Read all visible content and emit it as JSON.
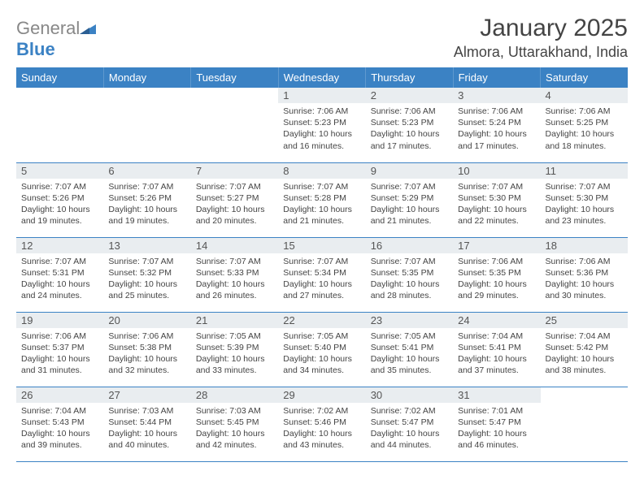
{
  "brand": {
    "part1": "General",
    "part2": "Blue"
  },
  "title": "January 2025",
  "location": "Almora, Uttarakhand, India",
  "colors": {
    "accent": "#3b82c4",
    "header_row": "#e9edf0",
    "text": "#444444"
  },
  "weekdays": [
    "Sunday",
    "Monday",
    "Tuesday",
    "Wednesday",
    "Thursday",
    "Friday",
    "Saturday"
  ],
  "weeks": [
    [
      {
        "empty": true
      },
      {
        "empty": true
      },
      {
        "empty": true
      },
      {
        "day": "1",
        "sunrise": "Sunrise: 7:06 AM",
        "sunset": "Sunset: 5:23 PM",
        "daylight1": "Daylight: 10 hours",
        "daylight2": "and 16 minutes."
      },
      {
        "day": "2",
        "sunrise": "Sunrise: 7:06 AM",
        "sunset": "Sunset: 5:23 PM",
        "daylight1": "Daylight: 10 hours",
        "daylight2": "and 17 minutes."
      },
      {
        "day": "3",
        "sunrise": "Sunrise: 7:06 AM",
        "sunset": "Sunset: 5:24 PM",
        "daylight1": "Daylight: 10 hours",
        "daylight2": "and 17 minutes."
      },
      {
        "day": "4",
        "sunrise": "Sunrise: 7:06 AM",
        "sunset": "Sunset: 5:25 PM",
        "daylight1": "Daylight: 10 hours",
        "daylight2": "and 18 minutes."
      }
    ],
    [
      {
        "day": "5",
        "sunrise": "Sunrise: 7:07 AM",
        "sunset": "Sunset: 5:26 PM",
        "daylight1": "Daylight: 10 hours",
        "daylight2": "and 19 minutes."
      },
      {
        "day": "6",
        "sunrise": "Sunrise: 7:07 AM",
        "sunset": "Sunset: 5:26 PM",
        "daylight1": "Daylight: 10 hours",
        "daylight2": "and 19 minutes."
      },
      {
        "day": "7",
        "sunrise": "Sunrise: 7:07 AM",
        "sunset": "Sunset: 5:27 PM",
        "daylight1": "Daylight: 10 hours",
        "daylight2": "and 20 minutes."
      },
      {
        "day": "8",
        "sunrise": "Sunrise: 7:07 AM",
        "sunset": "Sunset: 5:28 PM",
        "daylight1": "Daylight: 10 hours",
        "daylight2": "and 21 minutes."
      },
      {
        "day": "9",
        "sunrise": "Sunrise: 7:07 AM",
        "sunset": "Sunset: 5:29 PM",
        "daylight1": "Daylight: 10 hours",
        "daylight2": "and 21 minutes."
      },
      {
        "day": "10",
        "sunrise": "Sunrise: 7:07 AM",
        "sunset": "Sunset: 5:30 PM",
        "daylight1": "Daylight: 10 hours",
        "daylight2": "and 22 minutes."
      },
      {
        "day": "11",
        "sunrise": "Sunrise: 7:07 AM",
        "sunset": "Sunset: 5:30 PM",
        "daylight1": "Daylight: 10 hours",
        "daylight2": "and 23 minutes."
      }
    ],
    [
      {
        "day": "12",
        "sunrise": "Sunrise: 7:07 AM",
        "sunset": "Sunset: 5:31 PM",
        "daylight1": "Daylight: 10 hours",
        "daylight2": "and 24 minutes."
      },
      {
        "day": "13",
        "sunrise": "Sunrise: 7:07 AM",
        "sunset": "Sunset: 5:32 PM",
        "daylight1": "Daylight: 10 hours",
        "daylight2": "and 25 minutes."
      },
      {
        "day": "14",
        "sunrise": "Sunrise: 7:07 AM",
        "sunset": "Sunset: 5:33 PM",
        "daylight1": "Daylight: 10 hours",
        "daylight2": "and 26 minutes."
      },
      {
        "day": "15",
        "sunrise": "Sunrise: 7:07 AM",
        "sunset": "Sunset: 5:34 PM",
        "daylight1": "Daylight: 10 hours",
        "daylight2": "and 27 minutes."
      },
      {
        "day": "16",
        "sunrise": "Sunrise: 7:07 AM",
        "sunset": "Sunset: 5:35 PM",
        "daylight1": "Daylight: 10 hours",
        "daylight2": "and 28 minutes."
      },
      {
        "day": "17",
        "sunrise": "Sunrise: 7:06 AM",
        "sunset": "Sunset: 5:35 PM",
        "daylight1": "Daylight: 10 hours",
        "daylight2": "and 29 minutes."
      },
      {
        "day": "18",
        "sunrise": "Sunrise: 7:06 AM",
        "sunset": "Sunset: 5:36 PM",
        "daylight1": "Daylight: 10 hours",
        "daylight2": "and 30 minutes."
      }
    ],
    [
      {
        "day": "19",
        "sunrise": "Sunrise: 7:06 AM",
        "sunset": "Sunset: 5:37 PM",
        "daylight1": "Daylight: 10 hours",
        "daylight2": "and 31 minutes."
      },
      {
        "day": "20",
        "sunrise": "Sunrise: 7:06 AM",
        "sunset": "Sunset: 5:38 PM",
        "daylight1": "Daylight: 10 hours",
        "daylight2": "and 32 minutes."
      },
      {
        "day": "21",
        "sunrise": "Sunrise: 7:05 AM",
        "sunset": "Sunset: 5:39 PM",
        "daylight1": "Daylight: 10 hours",
        "daylight2": "and 33 minutes."
      },
      {
        "day": "22",
        "sunrise": "Sunrise: 7:05 AM",
        "sunset": "Sunset: 5:40 PM",
        "daylight1": "Daylight: 10 hours",
        "daylight2": "and 34 minutes."
      },
      {
        "day": "23",
        "sunrise": "Sunrise: 7:05 AM",
        "sunset": "Sunset: 5:41 PM",
        "daylight1": "Daylight: 10 hours",
        "daylight2": "and 35 minutes."
      },
      {
        "day": "24",
        "sunrise": "Sunrise: 7:04 AM",
        "sunset": "Sunset: 5:41 PM",
        "daylight1": "Daylight: 10 hours",
        "daylight2": "and 37 minutes."
      },
      {
        "day": "25",
        "sunrise": "Sunrise: 7:04 AM",
        "sunset": "Sunset: 5:42 PM",
        "daylight1": "Daylight: 10 hours",
        "daylight2": "and 38 minutes."
      }
    ],
    [
      {
        "day": "26",
        "sunrise": "Sunrise: 7:04 AM",
        "sunset": "Sunset: 5:43 PM",
        "daylight1": "Daylight: 10 hours",
        "daylight2": "and 39 minutes."
      },
      {
        "day": "27",
        "sunrise": "Sunrise: 7:03 AM",
        "sunset": "Sunset: 5:44 PM",
        "daylight1": "Daylight: 10 hours",
        "daylight2": "and 40 minutes."
      },
      {
        "day": "28",
        "sunrise": "Sunrise: 7:03 AM",
        "sunset": "Sunset: 5:45 PM",
        "daylight1": "Daylight: 10 hours",
        "daylight2": "and 42 minutes."
      },
      {
        "day": "29",
        "sunrise": "Sunrise: 7:02 AM",
        "sunset": "Sunset: 5:46 PM",
        "daylight1": "Daylight: 10 hours",
        "daylight2": "and 43 minutes."
      },
      {
        "day": "30",
        "sunrise": "Sunrise: 7:02 AM",
        "sunset": "Sunset: 5:47 PM",
        "daylight1": "Daylight: 10 hours",
        "daylight2": "and 44 minutes."
      },
      {
        "day": "31",
        "sunrise": "Sunrise: 7:01 AM",
        "sunset": "Sunset: 5:47 PM",
        "daylight1": "Daylight: 10 hours",
        "daylight2": "and 46 minutes."
      },
      {
        "empty": true
      }
    ]
  ]
}
